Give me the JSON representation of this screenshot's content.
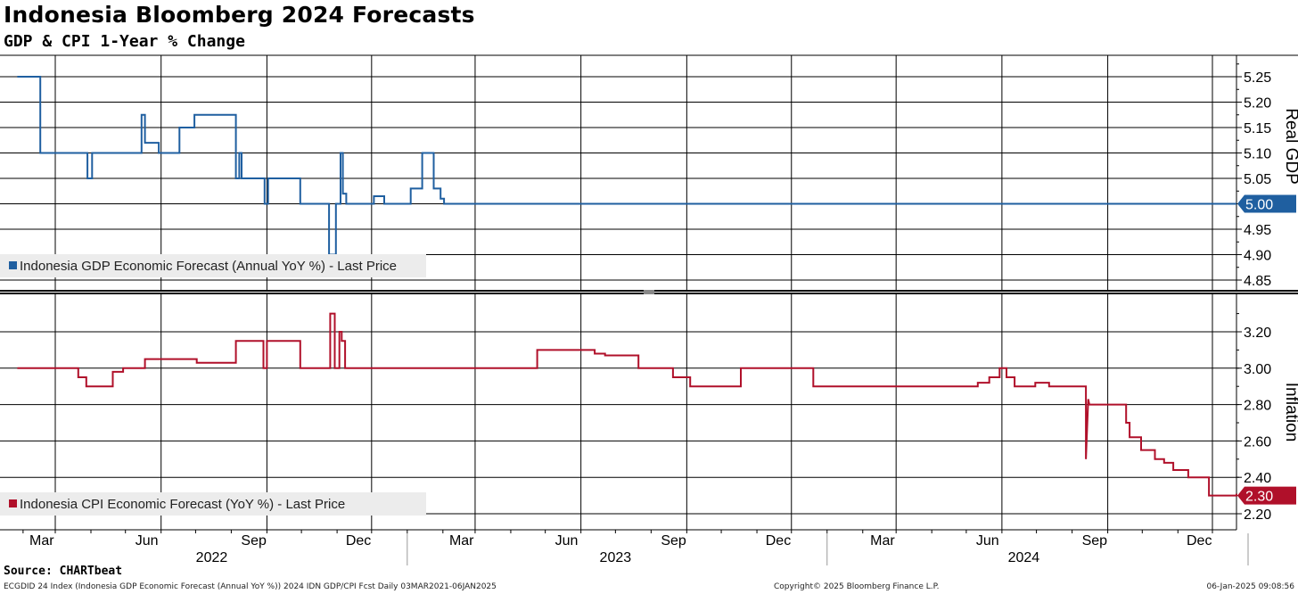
{
  "header": {
    "title": "Indonesia Bloomberg 2024 Forecasts",
    "subtitle": "GDP & CPI 1-Year % Change"
  },
  "footer": {
    "source": "Source: CHARTbeat",
    "left": "ECGDID 24 Index (Indonesia GDP Economic Forecast (Annual YoY %)) 2024 IDN GDP/CPI Fcst  Daily 03MAR2021-06JAN2025",
    "center": "Copyright© 2025 Bloomberg Finance L.P.",
    "right": "06-Jan-2025 09:08:56"
  },
  "chart_data": [
    {
      "type": "line",
      "ylabel": "Real GDP",
      "ylim": [
        4.83,
        5.28
      ],
      "yticks": [
        "5.25",
        "5.20",
        "5.15",
        "5.10",
        "5.05",
        "5.00",
        "4.95",
        "4.90",
        "4.85"
      ],
      "last_value_label": "5.00",
      "color": "#1f5fa0",
      "grid": true,
      "legend_position": "bottom-left",
      "series": [
        {
          "name": "Indonesia GDP Economic Forecast (Annual YoY %) - Last Price",
          "points": [
            [
              "2022-01-27",
              5.25
            ],
            [
              "2022-02-16",
              5.25
            ],
            [
              "2022-02-16",
              5.1
            ],
            [
              "2022-03-29",
              5.1
            ],
            [
              "2022-03-29",
              5.05
            ],
            [
              "2022-04-02",
              5.05
            ],
            [
              "2022-04-02",
              5.1
            ],
            [
              "2022-05-15",
              5.1
            ],
            [
              "2022-05-15",
              5.175
            ],
            [
              "2022-05-18",
              5.175
            ],
            [
              "2022-05-18",
              5.12
            ],
            [
              "2022-05-30",
              5.12
            ],
            [
              "2022-05-30",
              5.1
            ],
            [
              "2022-06-17",
              5.1
            ],
            [
              "2022-06-17",
              5.15
            ],
            [
              "2022-06-30",
              5.15
            ],
            [
              "2022-06-30",
              5.175
            ],
            [
              "2022-08-05",
              5.175
            ],
            [
              "2022-08-05",
              5.05
            ],
            [
              "2022-08-08",
              5.05
            ],
            [
              "2022-08-08",
              5.1
            ],
            [
              "2022-08-10",
              5.1
            ],
            [
              "2022-08-10",
              5.05
            ],
            [
              "2022-08-30",
              5.05
            ],
            [
              "2022-08-30",
              5.0
            ],
            [
              "2022-09-02",
              5.0
            ],
            [
              "2022-09-02",
              5.05
            ],
            [
              "2022-09-30",
              5.05
            ],
            [
              "2022-09-30",
              5.0
            ],
            [
              "2022-10-25",
              5.0
            ],
            [
              "2022-10-25",
              4.9
            ],
            [
              "2022-10-31",
              4.9
            ],
            [
              "2022-10-31",
              5.0
            ],
            [
              "2022-11-04",
              5.0
            ],
            [
              "2022-11-04",
              5.1
            ],
            [
              "2022-11-06",
              5.1
            ],
            [
              "2022-11-06",
              5.02
            ],
            [
              "2022-11-09",
              5.02
            ],
            [
              "2022-11-09",
              5.0
            ],
            [
              "2022-12-03",
              5.0
            ],
            [
              "2022-12-03",
              5.015
            ],
            [
              "2022-12-12",
              5.015
            ],
            [
              "2022-12-12",
              5.0
            ],
            [
              "2023-01-04",
              5.0
            ],
            [
              "2023-01-04",
              5.03
            ],
            [
              "2023-01-14",
              5.03
            ],
            [
              "2023-01-14",
              5.1
            ],
            [
              "2023-01-24",
              5.1
            ],
            [
              "2023-01-24",
              5.03
            ],
            [
              "2023-01-30",
              5.03
            ],
            [
              "2023-01-30",
              5.01
            ],
            [
              "2023-02-02",
              5.01
            ],
            [
              "2023-02-02",
              5.0
            ],
            [
              "2025-01-06",
              5.0
            ]
          ]
        }
      ]
    },
    {
      "type": "line",
      "ylabel": "Inflation",
      "ylim": [
        2.1,
        3.35
      ],
      "yticks": [
        "3.20",
        "3.00",
        "2.80",
        "2.60",
        "2.40",
        "2.20"
      ],
      "last_value_label": "2.30",
      "color": "#b0102a",
      "grid": true,
      "legend_position": "bottom-left",
      "x_month_labels": [
        "Mar",
        "Jun",
        "Sep",
        "Dec",
        "Mar",
        "Jun",
        "Sep",
        "Dec",
        "Mar",
        "Jun",
        "Sep",
        "Dec"
      ],
      "x_year_labels": [
        "2022",
        "2023",
        "2024"
      ],
      "series": [
        {
          "name": "Indonesia CPI Economic Forecast (YoY %) - Last Price",
          "points": [
            [
              "2022-01-27",
              3.0
            ],
            [
              "2022-03-21",
              3.0
            ],
            [
              "2022-03-21",
              2.95
            ],
            [
              "2022-03-28",
              2.95
            ],
            [
              "2022-03-28",
              2.9
            ],
            [
              "2022-04-20",
              2.9
            ],
            [
              "2022-04-20",
              2.98
            ],
            [
              "2022-04-29",
              2.98
            ],
            [
              "2022-04-29",
              3.0
            ],
            [
              "2022-05-18",
              3.0
            ],
            [
              "2022-05-18",
              3.05
            ],
            [
              "2022-07-02",
              3.05
            ],
            [
              "2022-07-02",
              3.03
            ],
            [
              "2022-08-05",
              3.03
            ],
            [
              "2022-08-05",
              3.15
            ],
            [
              "2022-08-29",
              3.15
            ],
            [
              "2022-08-29",
              3.0
            ],
            [
              "2022-09-01",
              3.0
            ],
            [
              "2022-09-01",
              3.15
            ],
            [
              "2022-09-30",
              3.15
            ],
            [
              "2022-09-30",
              3.0
            ],
            [
              "2022-10-26",
              3.0
            ],
            [
              "2022-10-26",
              3.3
            ],
            [
              "2022-10-30",
              3.3
            ],
            [
              "2022-10-30",
              3.0
            ],
            [
              "2022-11-03",
              3.0
            ],
            [
              "2022-11-03",
              3.2
            ],
            [
              "2022-11-05",
              3.2
            ],
            [
              "2022-11-05",
              3.15
            ],
            [
              "2022-11-08",
              3.15
            ],
            [
              "2022-11-08",
              3.0
            ],
            [
              "2023-04-24",
              3.0
            ],
            [
              "2023-04-24",
              3.1
            ],
            [
              "2023-06-13",
              3.1
            ],
            [
              "2023-06-13",
              3.08
            ],
            [
              "2023-06-22",
              3.08
            ],
            [
              "2023-06-22",
              3.07
            ],
            [
              "2023-07-21",
              3.07
            ],
            [
              "2023-07-21",
              3.0
            ],
            [
              "2023-08-20",
              3.0
            ],
            [
              "2023-08-20",
              2.95
            ],
            [
              "2023-09-04",
              2.95
            ],
            [
              "2023-09-04",
              2.9
            ],
            [
              "2023-10-18",
              2.9
            ],
            [
              "2023-10-18",
              3.0
            ],
            [
              "2023-12-20",
              3.0
            ],
            [
              "2023-12-20",
              2.9
            ],
            [
              "2024-05-11",
              2.9
            ],
            [
              "2024-05-11",
              2.92
            ],
            [
              "2024-05-21",
              2.92
            ],
            [
              "2024-05-21",
              2.95
            ],
            [
              "2024-05-30",
              2.95
            ],
            [
              "2024-05-30",
              3.0
            ],
            [
              "2024-06-05",
              3.0
            ],
            [
              "2024-06-05",
              2.95
            ],
            [
              "2024-06-12",
              2.95
            ],
            [
              "2024-06-12",
              2.9
            ],
            [
              "2024-06-30",
              2.9
            ],
            [
              "2024-06-30",
              2.92
            ],
            [
              "2024-07-12",
              2.92
            ],
            [
              "2024-07-12",
              2.9
            ],
            [
              "2024-08-13",
              2.9
            ],
            [
              "2024-08-13",
              2.5
            ],
            [
              "2024-08-15",
              2.83
            ],
            [
              "2024-08-16",
              2.8
            ],
            [
              "2024-09-17",
              2.8
            ],
            [
              "2024-09-17",
              2.7
            ],
            [
              "2024-09-20",
              2.7
            ],
            [
              "2024-09-20",
              2.62
            ],
            [
              "2024-09-30",
              2.62
            ],
            [
              "2024-09-30",
              2.55
            ],
            [
              "2024-10-12",
              2.55
            ],
            [
              "2024-10-12",
              2.5
            ],
            [
              "2024-10-20",
              2.5
            ],
            [
              "2024-10-20",
              2.48
            ],
            [
              "2024-10-28",
              2.48
            ],
            [
              "2024-10-28",
              2.44
            ],
            [
              "2024-11-10",
              2.44
            ],
            [
              "2024-11-10",
              2.4
            ],
            [
              "2024-11-28",
              2.4
            ],
            [
              "2024-11-28",
              2.3
            ],
            [
              "2024-12-22",
              2.3
            ],
            [
              "2024-12-22",
              2.31
            ],
            [
              "2024-12-24",
              2.31
            ],
            [
              "2025-01-06",
              2.3
            ]
          ]
        }
      ]
    }
  ]
}
